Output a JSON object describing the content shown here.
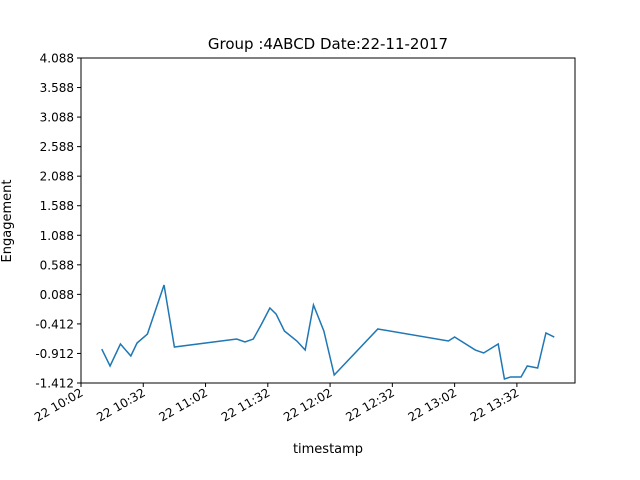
{
  "chart_data": {
    "type": "line",
    "title": "Group :4ABCD Date:22-11-2017",
    "x_label": "timestamp",
    "y_label": "Engagement",
    "x": [
      "10:12",
      "10:16",
      "10:21",
      "10:26",
      "10:29",
      "10:34",
      "10:42",
      "10:47",
      "11:17",
      "11:21",
      "11:25",
      "11:29",
      "11:33",
      "11:36",
      "11:40",
      "11:46",
      "11:50",
      "11:54",
      "11:59",
      "12:04",
      "12:25",
      "12:59",
      "13:02",
      "13:12",
      "13:16",
      "13:23",
      "13:26",
      "13:29",
      "13:34",
      "13:37",
      "13:42",
      "13:46",
      "13:50"
    ],
    "series": [
      {
        "name": "Engagement",
        "color": "#1f77b4",
        "values": [
          -0.837,
          -1.124,
          -0.752,
          -0.955,
          -0.735,
          -0.583,
          0.246,
          -0.803,
          -0.668,
          -0.718,
          -0.668,
          -0.414,
          -0.143,
          -0.245,
          -0.532,
          -0.701,
          -0.854,
          -0.092,
          -0.532,
          -1.277,
          -0.498,
          -0.701,
          -0.634,
          -0.854,
          -0.904,
          -0.752,
          -1.344,
          -1.31,
          -1.31,
          -1.124,
          -1.158,
          -0.566,
          -0.634
        ]
      }
    ],
    "xlim": [
      "10:02",
      "14:00"
    ],
    "xticks": [
      {
        "value": "10:02",
        "label": "22 10:02"
      },
      {
        "value": "10:32",
        "label": "22 10:32"
      },
      {
        "value": "11:02",
        "label": "22 11:02"
      },
      {
        "value": "11:32",
        "label": "22 11:32"
      },
      {
        "value": "12:02",
        "label": "22 12:02"
      },
      {
        "value": "12:32",
        "label": "22 12:32"
      },
      {
        "value": "13:02",
        "label": "22 13:02"
      },
      {
        "value": "13:32",
        "label": "22 13:32"
      }
    ],
    "ylim": [
      -1.412,
      4.088
    ],
    "yticks": [
      -1.412,
      -0.912,
      -0.412,
      0.088,
      0.588,
      1.088,
      1.588,
      2.088,
      2.588,
      3.088,
      3.588,
      4.088
    ],
    "grid": false
  }
}
